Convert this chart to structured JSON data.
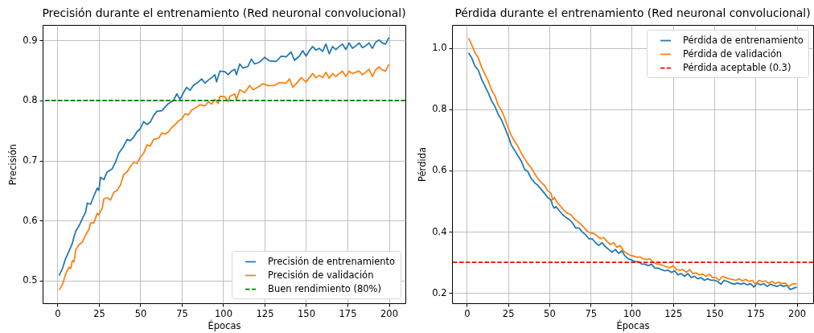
{
  "chart_data": [
    {
      "type": "line",
      "title": "Precisión durante el entrenamiento (Red neuronal convolucional)",
      "xlabel": "Épocas",
      "ylabel": "Precisión",
      "xlim": [
        -8.95,
        209.95
      ],
      "ylim": [
        0.462,
        0.926
      ],
      "xticks": [
        0,
        25,
        50,
        75,
        100,
        125,
        150,
        175,
        200
      ],
      "yticks": [
        0.5,
        0.6,
        0.7,
        0.8,
        0.9
      ],
      "grid": true,
      "legend": "bottom right",
      "series": [
        {
          "name": "Precisión de entrenamiento",
          "color": "#1f77b4",
          "x": [
            1,
            3,
            5,
            7,
            9,
            10,
            11,
            13,
            15,
            17,
            18,
            20,
            22,
            24,
            25,
            26,
            28,
            30,
            33,
            35,
            37,
            40,
            42,
            44,
            46,
            48,
            50,
            52,
            54,
            56,
            58,
            60,
            63,
            65,
            67,
            70,
            72,
            74,
            76,
            78,
            80,
            82,
            85,
            87,
            89,
            91,
            93,
            95,
            96,
            98,
            101,
            103,
            105,
            107,
            108,
            110,
            112,
            115,
            117,
            119,
            122,
            125,
            128,
            132,
            135,
            138,
            141,
            143,
            146,
            148,
            150,
            152,
            154,
            156,
            158,
            160,
            162,
            164,
            166,
            168,
            170,
            172,
            174,
            176,
            178,
            180,
            182,
            184,
            186,
            188,
            190,
            192,
            194,
            196,
            198,
            200
          ],
          "values": [
            0.508,
            0.52,
            0.537,
            0.549,
            0.562,
            0.573,
            0.582,
            0.591,
            0.603,
            0.614,
            0.629,
            0.627,
            0.641,
            0.654,
            0.65,
            0.672,
            0.668,
            0.681,
            0.686,
            0.697,
            0.712,
            0.724,
            0.735,
            0.733,
            0.739,
            0.748,
            0.753,
            0.765,
            0.76,
            0.764,
            0.775,
            0.782,
            0.783,
            0.789,
            0.795,
            0.8,
            0.811,
            0.802,
            0.813,
            0.822,
            0.817,
            0.825,
            0.831,
            0.836,
            0.829,
            0.834,
            0.838,
            0.843,
            0.831,
            0.849,
            0.848,
            0.843,
            0.849,
            0.852,
            0.843,
            0.861,
            0.854,
            0.857,
            0.869,
            0.861,
            0.864,
            0.872,
            0.866,
            0.865,
            0.874,
            0.873,
            0.881,
            0.867,
            0.874,
            0.883,
            0.874,
            0.883,
            0.89,
            0.884,
            0.887,
            0.882,
            0.894,
            0.878,
            0.89,
            0.885,
            0.89,
            0.894,
            0.885,
            0.896,
            0.887,
            0.891,
            0.896,
            0.888,
            0.891,
            0.896,
            0.887,
            0.897,
            0.901,
            0.896,
            0.894,
            0.905
          ]
        },
        {
          "name": "Precisión de validación",
          "color": "#ff7f0e",
          "x": [
            1,
            3,
            5,
            7,
            8,
            9,
            10,
            11,
            13,
            15,
            17,
            19,
            20,
            22,
            24,
            25,
            27,
            28,
            30,
            32,
            34,
            36,
            38,
            40,
            42,
            44,
            46,
            48,
            50,
            52,
            54,
            56,
            58,
            61,
            63,
            65,
            67,
            69,
            71,
            73,
            75,
            77,
            79,
            81,
            84,
            86,
            89,
            91,
            93,
            95,
            97,
            98,
            101,
            103,
            104,
            107,
            108,
            110,
            113,
            116,
            118,
            121,
            124,
            127,
            131,
            134,
            138,
            140,
            142,
            145,
            147,
            150,
            152,
            154,
            156,
            158,
            160,
            162,
            164,
            166,
            168,
            170,
            172,
            174,
            176,
            178,
            180,
            182,
            184,
            186,
            188,
            190,
            192,
            194,
            196,
            198,
            200
          ],
          "values": [
            0.484,
            0.493,
            0.511,
            0.522,
            0.52,
            0.533,
            0.531,
            0.551,
            0.56,
            0.564,
            0.576,
            0.585,
            0.596,
            0.596,
            0.612,
            0.609,
            0.62,
            0.636,
            0.638,
            0.634,
            0.647,
            0.65,
            0.659,
            0.677,
            0.681,
            0.69,
            0.697,
            0.695,
            0.706,
            0.712,
            0.726,
            0.724,
            0.735,
            0.737,
            0.746,
            0.744,
            0.748,
            0.755,
            0.76,
            0.766,
            0.769,
            0.778,
            0.776,
            0.784,
            0.789,
            0.793,
            0.791,
            0.798,
            0.794,
            0.802,
            0.795,
            0.807,
            0.806,
            0.798,
            0.807,
            0.811,
            0.801,
            0.818,
            0.813,
            0.825,
            0.818,
            0.822,
            0.828,
            0.825,
            0.825,
            0.83,
            0.829,
            0.836,
            0.822,
            0.831,
            0.838,
            0.831,
            0.838,
            0.845,
            0.838,
            0.842,
            0.838,
            0.847,
            0.837,
            0.845,
            0.84,
            0.845,
            0.849,
            0.84,
            0.849,
            0.845,
            0.847,
            0.849,
            0.843,
            0.847,
            0.852,
            0.84,
            0.851,
            0.856,
            0.851,
            0.849,
            0.86
          ]
        }
      ],
      "ref_lines": [
        {
          "axis": "y",
          "value": 0.8,
          "label": "Buen rendimiento (80%)",
          "color": "#008000",
          "line_style": "dashed"
        }
      ]
    },
    {
      "type": "line",
      "title": "Pérdida durante el entrenamiento (Red neuronal convolucional)",
      "xlabel": "Épocas",
      "ylabel": "Pérdida",
      "xlim": [
        -8.95,
        209.95
      ],
      "ylim": [
        0.166,
        1.076
      ],
      "xticks": [
        0,
        25,
        50,
        75,
        100,
        125,
        150,
        175,
        200
      ],
      "yticks": [
        0.2,
        0.4,
        0.6,
        0.8,
        {
          "value": 1,
          "label": "1.0"
        }
      ],
      "grid": true,
      "legend": "top right",
      "series": [
        {
          "name": "Pérdida de entrenamiento",
          "color": "#1f77b4",
          "x": [
            1,
            3,
            5,
            7,
            9,
            11,
            13,
            15,
            17,
            19,
            21,
            23,
            25,
            27,
            29,
            31,
            33,
            35,
            37,
            39,
            41,
            43,
            45,
            47,
            49,
            51,
            52,
            53,
            54,
            56,
            58,
            60,
            62,
            64,
            66,
            68,
            70,
            72,
            74,
            76,
            78,
            80,
            82,
            84,
            86,
            88,
            90,
            92,
            94,
            96,
            98,
            100,
            102,
            104,
            106,
            108,
            110,
            112,
            114,
            116,
            118,
            120,
            122,
            124,
            126,
            128,
            130,
            132,
            134,
            136,
            138,
            140,
            142,
            144,
            146,
            148,
            150,
            152,
            154,
            156,
            158,
            160,
            162,
            164,
            166,
            168,
            170,
            172,
            174,
            176,
            178,
            180,
            182,
            184,
            186,
            188,
            190,
            192,
            194,
            196,
            198,
            200
          ],
          "values": [
            0.985,
            0.968,
            0.941,
            0.928,
            0.898,
            0.876,
            0.854,
            0.828,
            0.81,
            0.784,
            0.766,
            0.74,
            0.714,
            0.683,
            0.666,
            0.648,
            0.631,
            0.604,
            0.596,
            0.574,
            0.561,
            0.552,
            0.539,
            0.526,
            0.512,
            0.504,
            0.486,
            0.477,
            0.482,
            0.469,
            0.456,
            0.447,
            0.44,
            0.429,
            0.412,
            0.412,
            0.399,
            0.39,
            0.377,
            0.377,
            0.364,
            0.355,
            0.364,
            0.351,
            0.342,
            0.333,
            0.342,
            0.329,
            0.337,
            0.32,
            0.311,
            0.307,
            0.302,
            0.302,
            0.294,
            0.294,
            0.289,
            0.294,
            0.281,
            0.281,
            0.276,
            0.272,
            0.274,
            0.267,
            0.272,
            0.259,
            0.263,
            0.254,
            0.263,
            0.25,
            0.254,
            0.246,
            0.25,
            0.241,
            0.246,
            0.241,
            0.241,
            0.237,
            0.228,
            0.241,
            0.237,
            0.232,
            0.228,
            0.232,
            0.228,
            0.232,
            0.226,
            0.23,
            0.219,
            0.232,
            0.226,
            0.23,
            0.221,
            0.228,
            0.224,
            0.221,
            0.226,
            0.221,
            0.224,
            0.211,
            0.215,
            0.219
          ]
        },
        {
          "name": "Pérdida de validación",
          "color": "#ff7f0e",
          "x": [
            1,
            3,
            5,
            7,
            9,
            11,
            13,
            15,
            17,
            19,
            21,
            23,
            25,
            27,
            29,
            31,
            33,
            35,
            37,
            39,
            41,
            43,
            45,
            47,
            49,
            51,
            52,
            53,
            55,
            57,
            59,
            61,
            63,
            65,
            67,
            69,
            71,
            73,
            75,
            77,
            79,
            81,
            83,
            85,
            87,
            89,
            91,
            93,
            95,
            97,
            99,
            101,
            103,
            105,
            107,
            109,
            111,
            113,
            115,
            117,
            119,
            121,
            123,
            125,
            127,
            129,
            131,
            133,
            135,
            137,
            139,
            141,
            143,
            145,
            147,
            149,
            151,
            153,
            155,
            157,
            159,
            161,
            163,
            165,
            167,
            169,
            171,
            173,
            175,
            177,
            179,
            181,
            183,
            185,
            187,
            189,
            191,
            193,
            195,
            197,
            199,
            200
          ],
          "values": [
            1.033,
            1.011,
            0.985,
            0.968,
            0.937,
            0.915,
            0.893,
            0.863,
            0.845,
            0.814,
            0.797,
            0.771,
            0.74,
            0.714,
            0.696,
            0.679,
            0.657,
            0.639,
            0.622,
            0.609,
            0.591,
            0.574,
            0.561,
            0.552,
            0.534,
            0.526,
            0.504,
            0.512,
            0.495,
            0.482,
            0.469,
            0.46,
            0.456,
            0.442,
            0.434,
            0.425,
            0.414,
            0.401,
            0.396,
            0.394,
            0.386,
            0.377,
            0.381,
            0.368,
            0.358,
            0.364,
            0.349,
            0.355,
            0.337,
            0.329,
            0.323,
            0.32,
            0.317,
            0.317,
            0.311,
            0.309,
            0.311,
            0.3,
            0.294,
            0.294,
            0.289,
            0.285,
            0.282,
            0.289,
            0.276,
            0.274,
            0.276,
            0.267,
            0.276,
            0.263,
            0.265,
            0.259,
            0.261,
            0.254,
            0.261,
            0.25,
            0.25,
            0.241,
            0.254,
            0.25,
            0.246,
            0.244,
            0.241,
            0.246,
            0.239,
            0.244,
            0.237,
            0.241,
            0.228,
            0.241,
            0.237,
            0.239,
            0.232,
            0.237,
            0.23,
            0.235,
            0.23,
            0.232,
            0.221,
            0.228,
            0.23,
            0.23
          ]
        }
      ],
      "ref_lines": [
        {
          "axis": "y",
          "value": 0.3,
          "label": "Pérdida aceptable (0.3)",
          "color": "#ff0000",
          "line_style": "dashed"
        }
      ]
    }
  ]
}
